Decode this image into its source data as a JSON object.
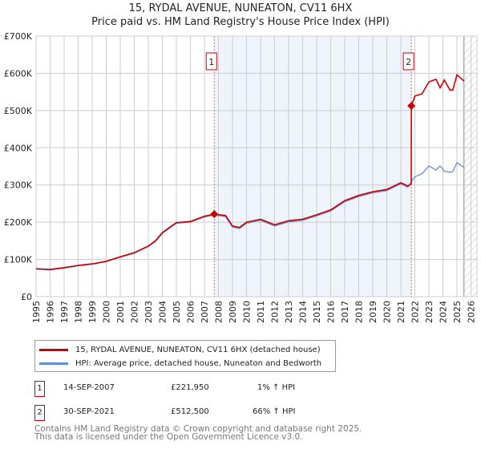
{
  "title": "15, RYDAL AVENUE, NUNEATON, CV11 6HX",
  "subtitle": "Price paid vs. HM Land Registry's House Price Index (HPI)",
  "colors": {
    "property": "#cc0000",
    "hpi": "#6090d0",
    "shade": "#eef3fc",
    "grid": "#cccccc"
  },
  "chart_data": {
    "type": "line",
    "xlim": [
      1995,
      2026
    ],
    "ylim": [
      0,
      700000
    ],
    "yticks": [
      0,
      100000,
      200000,
      300000,
      400000,
      500000,
      600000,
      700000
    ],
    "ytick_labels": [
      "£0",
      "£100K",
      "£200K",
      "£300K",
      "£400K",
      "£500K",
      "£600K",
      "£700K"
    ],
    "xticks": [
      "1995",
      "1996",
      "1997",
      "1998",
      "1999",
      "2000",
      "2001",
      "2002",
      "2003",
      "2004",
      "2005",
      "2006",
      "2007",
      "2008",
      "2009",
      "2010",
      "2011",
      "2012",
      "2013",
      "2014",
      "2015",
      "2016",
      "2017",
      "2018",
      "2019",
      "2020",
      "2021",
      "2022",
      "2023",
      "2024",
      "2025",
      "2026"
    ],
    "shaded_range": [
      2007.7,
      2021.75
    ],
    "projection_from": 2025.5,
    "series": [
      {
        "name": "15, RYDAL AVENUE, NUNEATON, CV11 6HX (detached house)",
        "x": [
          1995,
          1996,
          1997,
          1998,
          1999,
          2000,
          2001,
          2002,
          2003,
          2003.5,
          2004,
          2005,
          2006,
          2007,
          2007.7,
          2008.5,
          2009,
          2009.5,
          2010,
          2011,
          2012,
          2013,
          2014,
          2015,
          2016,
          2017,
          2018,
          2019,
          2020,
          2021,
          2021.5,
          2021.74,
          2021.75,
          2022,
          2022.5,
          2023,
          2023.5,
          2023.8,
          2024.1,
          2024.5,
          2024.7,
          2025,
          2025.5
        ],
        "y": [
          75000,
          73000,
          78000,
          84000,
          88000,
          95000,
          107000,
          118000,
          136000,
          150000,
          172000,
          199000,
          202000,
          216000,
          221950,
          218000,
          190000,
          186000,
          200000,
          208000,
          193000,
          204000,
          208000,
          220000,
          233000,
          258000,
          272000,
          282000,
          288000,
          306000,
          297000,
          303000,
          512500,
          539000,
          545000,
          577000,
          584000,
          561000,
          582000,
          555000,
          555000,
          596000,
          579000
        ]
      },
      {
        "name": "HPI: Average price, detached house, Nuneaton and Bedworth",
        "x": [
          1995,
          1996,
          1997,
          1998,
          1999,
          2000,
          2001,
          2002,
          2003,
          2003.5,
          2004,
          2005,
          2006,
          2007,
          2007.7,
          2008.5,
          2009,
          2009.5,
          2010,
          2011,
          2012,
          2013,
          2014,
          2015,
          2016,
          2017,
          2018,
          2019,
          2020,
          2021,
          2021.5,
          2021.75,
          2022,
          2022.5,
          2023,
          2023.5,
          2023.8,
          2024.1,
          2024.5,
          2024.7,
          2025,
          2025.5
        ],
        "y": [
          74000,
          72000,
          77000,
          83000,
          87000,
          94000,
          106000,
          117000,
          135000,
          148000,
          170000,
          197000,
          200000,
          214000,
          219700,
          215000,
          187000,
          183000,
          197000,
          205000,
          190000,
          201000,
          205000,
          217000,
          230000,
          255000,
          269000,
          279000,
          285000,
          303000,
          294000,
          308700,
          322000,
          330000,
          351000,
          340000,
          351000,
          337000,
          334000,
          336000,
          360000,
          347000
        ]
      }
    ],
    "sales": [
      {
        "label": "1",
        "x": 2007.7,
        "y": 221950
      },
      {
        "label": "2",
        "x": 2021.75,
        "y": 512500
      }
    ]
  },
  "legend": {
    "property": "15, RYDAL AVENUE, NUNEATON, CV11 6HX (detached house)",
    "hpi": "HPI: Average price, detached house, Nuneaton and Bedworth"
  },
  "transactions": [
    {
      "num": "1",
      "date": "14-SEP-2007",
      "price": "£221,950",
      "hpi": "1% ↑ HPI"
    },
    {
      "num": "2",
      "date": "30-SEP-2021",
      "price": "£512,500",
      "hpi": "66% ↑ HPI"
    }
  ],
  "footer": {
    "line1": "Contains HM Land Registry data © Crown copyright and database right 2025.",
    "line2": "This data is licensed under the Open Government Licence v3.0."
  }
}
